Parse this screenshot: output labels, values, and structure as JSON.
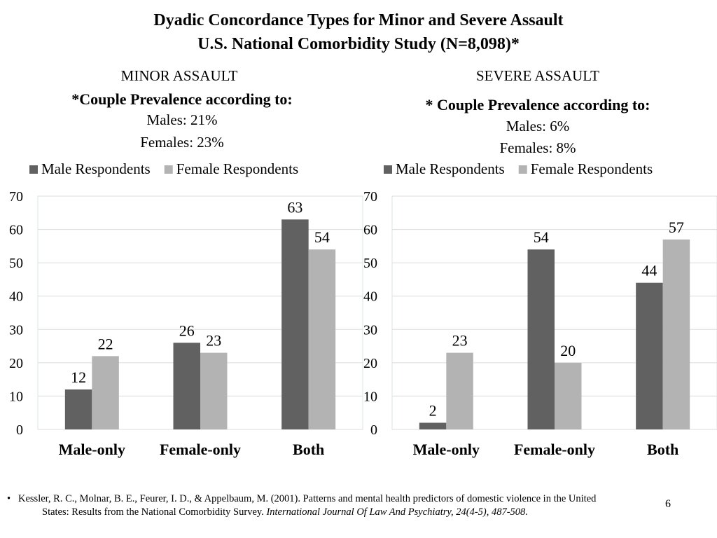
{
  "slide": {
    "title_line1": "Dyadic Concordance Types for Minor and Severe Assault",
    "title_line2": "U.S. National Comorbidity Study (N=8,098)*",
    "slide_number": "6"
  },
  "panels": [
    {
      "heading": "MINOR ASSAULT",
      "prevalence_heading": "*Couple Prevalence according to:",
      "males": "Males: 21%",
      "females": "Females: 23%"
    },
    {
      "heading": "SEVERE ASSAULT",
      "prevalence_heading": "* Couple Prevalence according to:",
      "males": "Males: 6%",
      "females": "Females: 8%"
    }
  ],
  "chart_data": [
    {
      "type": "bar",
      "title": "MINOR ASSAULT",
      "categories": [
        "Male-only",
        "Female-only",
        "Both"
      ],
      "series": [
        {
          "name": "Male Respondents",
          "values": [
            12,
            26,
            63
          ],
          "color": "#616161"
        },
        {
          "name": "Female Respondents",
          "values": [
            22,
            23,
            54
          ],
          "color": "#b3b3b3"
        }
      ],
      "ylim": [
        0,
        70
      ],
      "yticks": [
        0,
        10,
        20,
        30,
        40,
        50,
        60,
        70
      ],
      "grid": true,
      "legend": "top",
      "data_labels": true
    },
    {
      "type": "bar",
      "title": "SEVERE ASSAULT",
      "categories": [
        "Male-only",
        "Female-only",
        "Both"
      ],
      "series": [
        {
          "name": "Male Respondents",
          "values": [
            2,
            54,
            44
          ],
          "color": "#616161"
        },
        {
          "name": "Female Respondents",
          "values": [
            23,
            20,
            57
          ],
          "color": "#b3b3b3"
        }
      ],
      "ylim": [
        0,
        70
      ],
      "yticks": [
        0,
        10,
        20,
        30,
        40,
        50,
        60,
        70
      ],
      "grid": true,
      "legend": "top",
      "data_labels": true
    }
  ],
  "footnote": {
    "bullet": "•",
    "text_line1": "Kessler, R. C., Molnar, B. E., Feurer, I. D., & Appelbaum, M. (2001). Patterns and mental health predictors of domestic violence in the United",
    "text_line2_plain": "States: Results from the National Comorbidity Survey. ",
    "text_line2_italic": "International Journal Of Law And Psychiatry, 24(4-5), 487-508."
  }
}
